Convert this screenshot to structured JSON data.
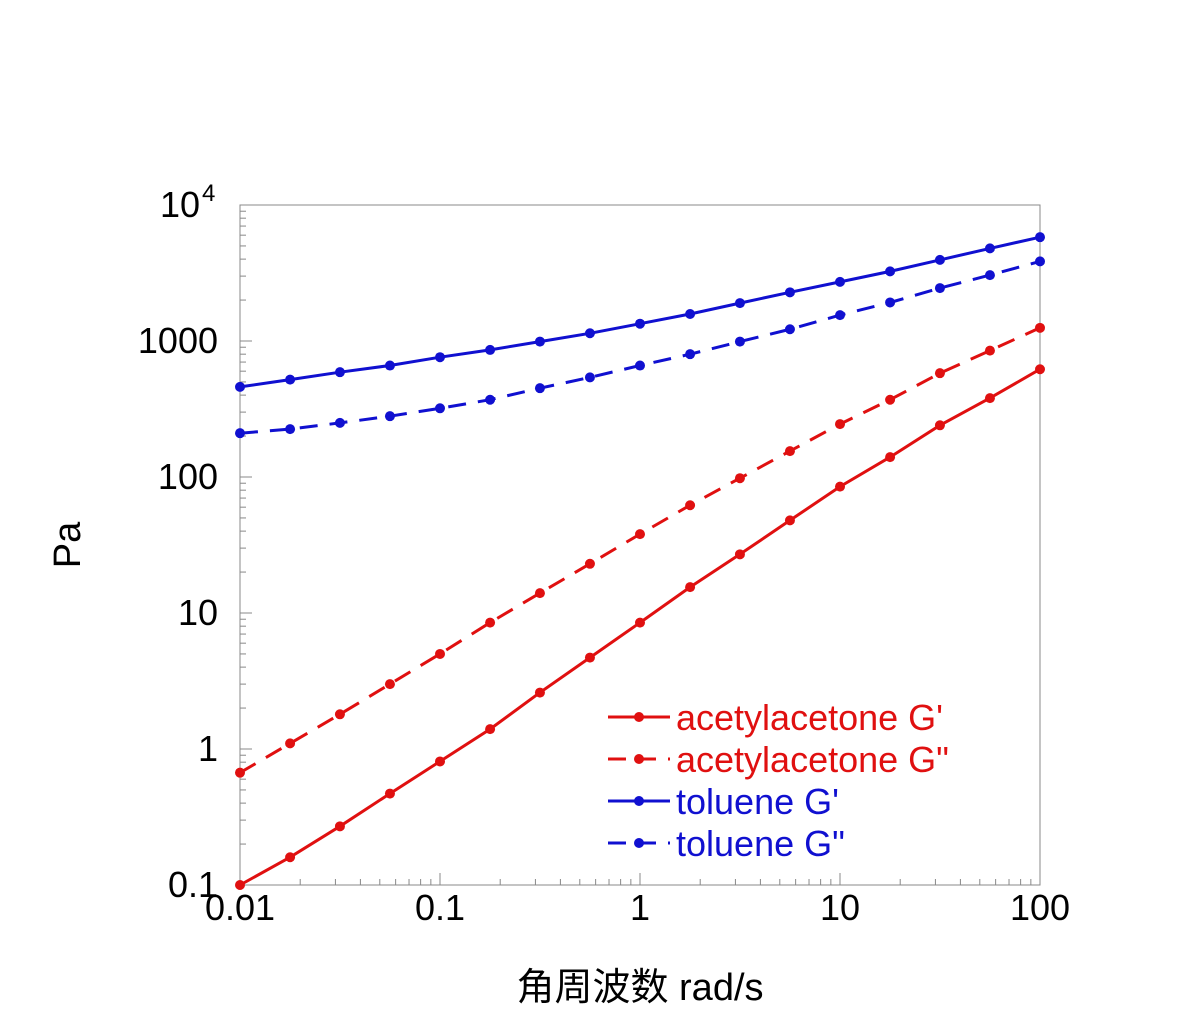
{
  "chart_data": {
    "type": "line",
    "title": "",
    "xlabel": "角周波数 rad/s",
    "ylabel": "Pa",
    "xscale": "log",
    "yscale": "log",
    "xlim": [
      0.01,
      100
    ],
    "ylim": [
      0.1,
      10000
    ],
    "grid": false,
    "legend_position": "bottom-right",
    "x_ticks": [
      {
        "value": 0.01,
        "label": "0.01"
      },
      {
        "value": 0.1,
        "label": "0.1"
      },
      {
        "value": 1,
        "label": "1"
      },
      {
        "value": 10,
        "label": "10"
      },
      {
        "value": 100,
        "label": "100"
      }
    ],
    "y_ticks": [
      {
        "value": 0.1,
        "label": "0.1",
        "sup": ""
      },
      {
        "value": 1,
        "label": "1",
        "sup": ""
      },
      {
        "value": 10,
        "label": "10",
        "sup": ""
      },
      {
        "value": 100,
        "label": "100",
        "sup": ""
      },
      {
        "value": 1000,
        "label": "1000",
        "sup": ""
      },
      {
        "value": 10000,
        "label": "10",
        "sup": "4"
      }
    ],
    "x": [
      0.01,
      0.0178,
      0.0316,
      0.0562,
      0.1,
      0.178,
      0.316,
      0.562,
      1,
      1.78,
      3.16,
      5.62,
      10,
      17.8,
      31.6,
      56.2,
      100
    ],
    "series": [
      {
        "name": "acetylacetone G'",
        "color": "#e01010",
        "dash": "solid",
        "values": [
          0.1,
          0.16,
          0.27,
          0.47,
          0.81,
          1.4,
          2.6,
          4.7,
          8.5,
          15.5,
          27,
          48,
          85,
          140,
          240,
          380,
          620
        ]
      },
      {
        "name": "acetylacetone G\"",
        "color": "#e01010",
        "dash": "dashed",
        "values": [
          0.67,
          1.1,
          1.8,
          3.0,
          5.0,
          8.5,
          14,
          23,
          38,
          62,
          98,
          155,
          245,
          370,
          580,
          850,
          1250
        ]
      },
      {
        "name": "toluene G'",
        "color": "#1010d0",
        "dash": "solid",
        "values": [
          460,
          520,
          590,
          660,
          760,
          860,
          990,
          1140,
          1340,
          1580,
          1900,
          2280,
          2720,
          3250,
          3950,
          4800,
          5800
        ]
      },
      {
        "name": "toluene G\"",
        "color": "#1010d0",
        "dash": "dashed",
        "values": [
          210,
          225,
          250,
          280,
          320,
          370,
          450,
          540,
          660,
          800,
          990,
          1220,
          1550,
          1920,
          2450,
          3050,
          3850
        ]
      }
    ]
  }
}
